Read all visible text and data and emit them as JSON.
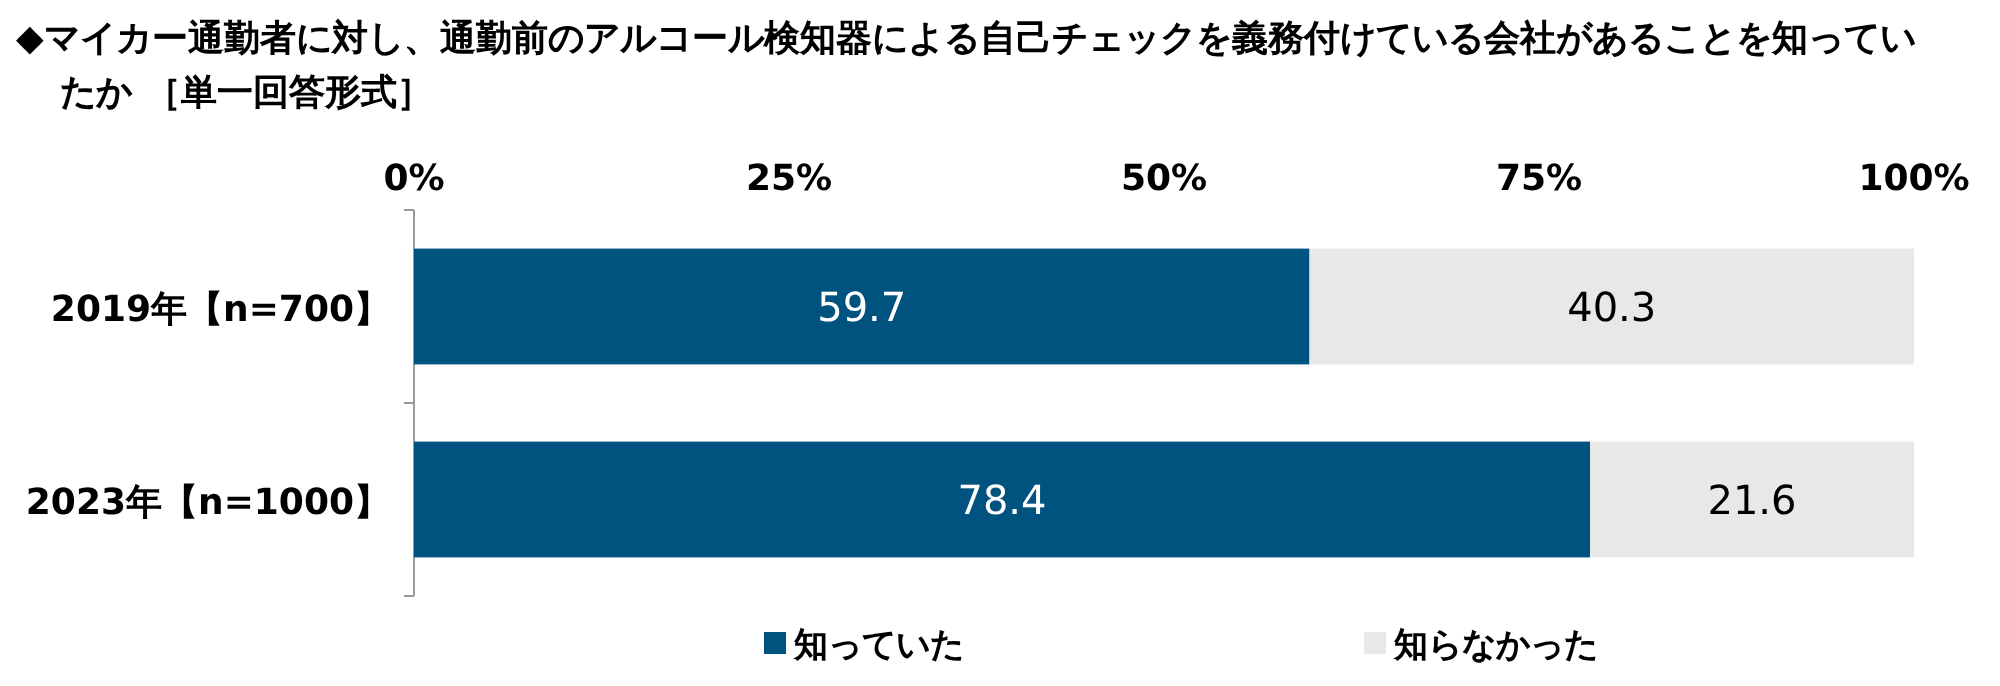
{
  "chart_data": {
    "type": "bar",
    "orientation": "horizontal",
    "stacked": true,
    "title": "◆マイカー通勤者に対し、通勤前のアルコール検知器による自己チェックを義務付けている会社があることを知っていたか ［単一回答形式］",
    "categories": [
      "2019年【n=700】",
      "2023年【n=1000】"
    ],
    "series": [
      {
        "name": "知っていた",
        "color": "#00527f",
        "values": [
          59.7,
          78.4
        ]
      },
      {
        "name": "知らなかった",
        "color": "#e8e8e8",
        "values": [
          40.3,
          21.6
        ]
      }
    ],
    "xlim": [
      0,
      100
    ],
    "xticks": [
      {
        "value": 0,
        "label": "0%"
      },
      {
        "value": 25,
        "label": "25%"
      },
      {
        "value": 50,
        "label": "50%"
      },
      {
        "value": 75,
        "label": "75%"
      },
      {
        "value": 100,
        "label": "100%"
      }
    ],
    "data_labels": true,
    "legend": "bottom"
  }
}
